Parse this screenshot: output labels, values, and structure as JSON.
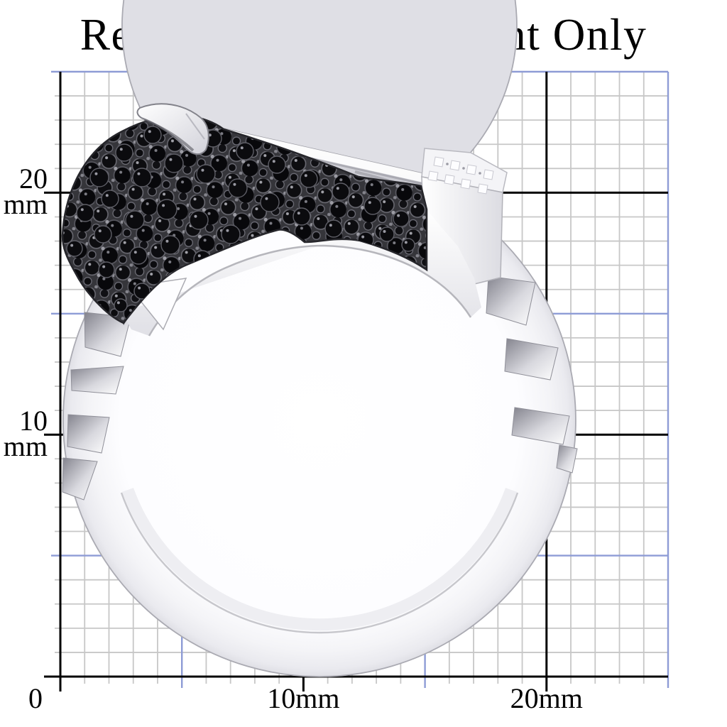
{
  "title": "Reference Measurement Only",
  "axes": {
    "unit": "mm",
    "x_range_mm": [
      0,
      25
    ],
    "y_range_mm": [
      0,
      25
    ],
    "minor_step_mm": 1,
    "mid_step_mm": 5,
    "major_step_mm": 10,
    "x_tick_labels": [
      {
        "mm": 0,
        "text": "0"
      },
      {
        "mm": 10,
        "text": "10mm"
      },
      {
        "mm": 20,
        "text": "20mm"
      }
    ],
    "y_tick_labels": [
      {
        "mm": 20,
        "line1": "20",
        "line2": "mm"
      },
      {
        "mm": 10,
        "line1": "10",
        "line2": "mm"
      }
    ]
  },
  "grid_colors": {
    "background": "#ffffff",
    "minor_line": "#c7c7c7",
    "mid_line": "#8e9cd6",
    "major_line": "#000000"
  },
  "photo": {
    "name": "ring-photo",
    "description": "Silver ring with black pave-set stones and clear accent stones, photographed over a millimetre reference grid"
  }
}
